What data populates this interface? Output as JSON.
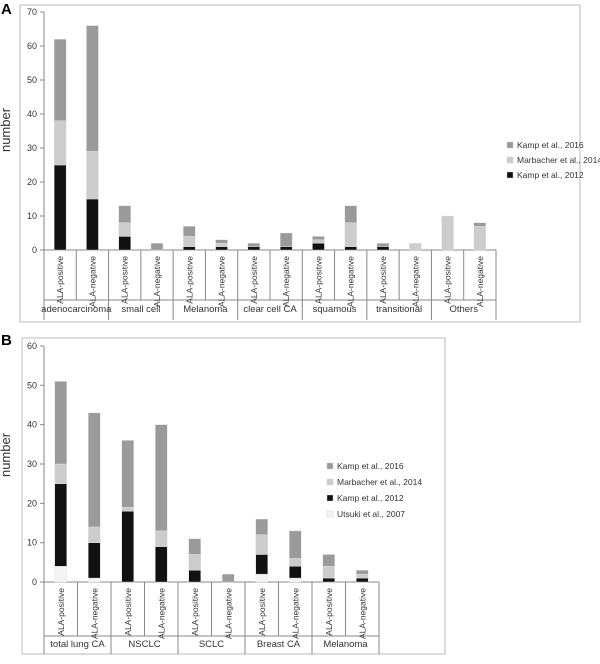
{
  "colors": {
    "kamp2016": "#9a9a9a",
    "marbacher2014": "#cccccc",
    "kamp2012": "#111111",
    "utsuki2007": "#f4f4f4",
    "frame": "#bbbbbb",
    "axis": "#888888"
  },
  "chart_data": [
    {
      "panel": "A",
      "type": "bar",
      "stacked": true,
      "ylabel": "number",
      "ylim": [
        0,
        70
      ],
      "yticks": [
        0,
        10,
        20,
        30,
        40,
        50,
        60,
        70
      ],
      "grid": false,
      "legend_position": "right",
      "categories": [
        "ALA-positive",
        "ALA-negative",
        "ALA-positive",
        "ALA-negative",
        "ALA-positive",
        "ALA-negative",
        "ALA-positive",
        "ALA-negative",
        "ALA-positive",
        "ALA-negative",
        "ALA-positive",
        "ALA-negative",
        "ALA-positive",
        "ALA-negative"
      ],
      "groups": [
        "adenocarcinoma",
        "small cell",
        "Melanoma",
        "clear cell CA",
        "squamous",
        "transitional",
        "Others"
      ],
      "series": [
        {
          "name": "Kamp et al., 2012",
          "color_key": "kamp2012",
          "values": [
            25,
            15,
            4,
            0,
            1,
            1,
            1,
            1,
            2,
            1,
            1,
            0,
            0,
            0
          ]
        },
        {
          "name": "Marbacher et al., 2014",
          "color_key": "marbacher2014",
          "values": [
            13,
            14,
            4,
            0,
            3,
            1,
            0,
            0,
            1,
            7,
            0,
            2,
            10,
            7
          ]
        },
        {
          "name": "Kamp et al., 2016",
          "color_key": "kamp2016",
          "values": [
            24,
            37,
            5,
            2,
            3,
            1,
            1,
            4,
            1,
            5,
            1,
            0,
            0,
            1
          ]
        }
      ],
      "legend_order": [
        "Kamp et al., 2016",
        "Marbacher et al., 2014",
        "Kamp et al., 2012"
      ]
    },
    {
      "panel": "B",
      "type": "bar",
      "stacked": true,
      "ylabel": "number",
      "ylim": [
        0,
        60
      ],
      "yticks": [
        0,
        10,
        20,
        30,
        40,
        50,
        60
      ],
      "grid": false,
      "legend_position": "right",
      "categories": [
        "ALA-positive",
        "ALA-negative",
        "ALA-positive",
        "ALA-negative",
        "ALA-positive",
        "ALA-negative",
        "ALA-positive",
        "ALA-negative",
        "ALA-positive",
        "ALA-negative"
      ],
      "groups": [
        "total lung CA",
        "NSCLC",
        "SCLC",
        "Breast CA",
        "Melanoma"
      ],
      "series": [
        {
          "name": "Utsuki et al., 2007",
          "color_key": "utsuki2007",
          "values": [
            4,
            1,
            0,
            0,
            0,
            0,
            2,
            1,
            0,
            0
          ]
        },
        {
          "name": "Kamp et al., 2012",
          "color_key": "kamp2012",
          "values": [
            21,
            9,
            18,
            9,
            3,
            0,
            5,
            3,
            1,
            1
          ]
        },
        {
          "name": "Marbacher et al., 2014",
          "color_key": "marbacher2014",
          "values": [
            5,
            4,
            1,
            4,
            4,
            0,
            5,
            2,
            3,
            1
          ]
        },
        {
          "name": "Kamp et al., 2016",
          "color_key": "kamp2016",
          "values": [
            21,
            29,
            17,
            27,
            4,
            2,
            4,
            7,
            3,
            1
          ]
        }
      ],
      "legend_order": [
        "Kamp et al., 2016",
        "Marbacher et al., 2014",
        "Kamp et al., 2012",
        "Utsuki et al., 2007"
      ]
    }
  ]
}
